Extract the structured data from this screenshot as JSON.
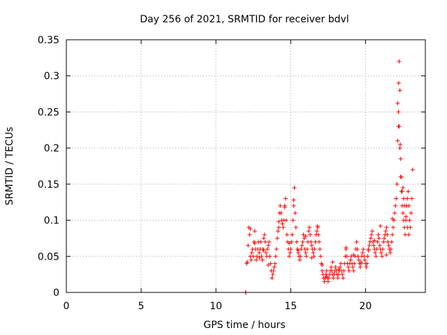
{
  "chart_data": {
    "type": "scatter",
    "title": "Day 256 of 2021, SRMTID for receiver bdvl",
    "xlabel": "GPS time / hours",
    "ylabel": "SRMTID / TECUs",
    "xlim": [
      0,
      24
    ],
    "ylim": [
      0,
      0.35
    ],
    "x_ticks": [
      0,
      5,
      10,
      15,
      20
    ],
    "x_tick_labels": [
      "0",
      "5",
      "10",
      "15",
      "20"
    ],
    "y_ticks": [
      0,
      0.05,
      0.1,
      0.15,
      0.2,
      0.25,
      0.3,
      0.35
    ],
    "y_tick_labels": [
      "0",
      "0.05",
      "0.1",
      "0.15",
      "0.2",
      "0.25",
      "0.3",
      "0.35"
    ],
    "grid": true,
    "legend": "none",
    "marker": "+",
    "color": "#ff0000",
    "series": [
      {
        "x": [
          11.98,
          12.0,
          12.05,
          12.1,
          12.15,
          12.2,
          12.25,
          12.3,
          12.35,
          12.4,
          12.45,
          12.5,
          12.55,
          12.6,
          12.65,
          12.7,
          12.75,
          12.8,
          12.85,
          12.9,
          12.95,
          13.0,
          13.05,
          13.1,
          13.15,
          13.2,
          13.25,
          13.3,
          13.35,
          13.4,
          13.45,
          13.5,
          13.55,
          13.6,
          13.65,
          13.7,
          13.75,
          13.8,
          13.85,
          13.9,
          13.95,
          14.0,
          14.05,
          14.1,
          14.15,
          14.2,
          14.25,
          14.3,
          14.35,
          14.4,
          14.45,
          14.5,
          14.55,
          14.6,
          14.65,
          14.7,
          14.75,
          14.8,
          14.85,
          14.9,
          14.95,
          15.0,
          15.05,
          15.1,
          15.15,
          15.2,
          15.25,
          15.3,
          15.35,
          15.4,
          15.45,
          15.5,
          15.55,
          15.6,
          15.65,
          15.7,
          15.75,
          15.8,
          15.85,
          15.9,
          15.95,
          16.0,
          16.05,
          16.1,
          16.15,
          16.2,
          16.25,
          16.3,
          16.35,
          16.4,
          16.45,
          16.5,
          16.55,
          16.6,
          16.65,
          16.7,
          16.75,
          16.8,
          16.85,
          16.9,
          16.95,
          17.0,
          17.05,
          17.1,
          17.15,
          17.2,
          17.25,
          17.3,
          17.35,
          17.4,
          17.45,
          17.5,
          17.55,
          17.6,
          17.65,
          17.7,
          17.75,
          17.8,
          17.85,
          17.9,
          17.95,
          18.0,
          18.05,
          18.1,
          18.15,
          18.2,
          18.25,
          18.3,
          18.35,
          18.4,
          18.45,
          18.5,
          18.55,
          18.6,
          18.65,
          18.7,
          18.75,
          18.8,
          18.85,
          18.9,
          18.95,
          19.0,
          19.05,
          19.1,
          19.15,
          19.2,
          19.25,
          19.3,
          19.35,
          19.4,
          19.45,
          19.5,
          19.55,
          19.6,
          19.65,
          19.7,
          19.75,
          19.8,
          19.85,
          19.9,
          19.95,
          20.0,
          20.05,
          20.1,
          20.15,
          20.2,
          20.25,
          20.3,
          20.35,
          20.4,
          20.45,
          20.5,
          20.55,
          20.6,
          20.65,
          20.7,
          20.75,
          20.8,
          20.85,
          20.9,
          20.95,
          21.0,
          21.05,
          21.1,
          21.15,
          21.2,
          21.25,
          21.3,
          21.35,
          21.4,
          21.45,
          21.5,
          21.55,
          21.6,
          21.65,
          21.7,
          21.75,
          21.8,
          21.85,
          21.9,
          21.95,
          22.0,
          22.05,
          22.1,
          22.15,
          22.2,
          22.25,
          22.3,
          22.35,
          22.4,
          22.45,
          22.5,
          22.55,
          22.6,
          22.65,
          22.7,
          22.75,
          22.8,
          22.85,
          22.9,
          22.95,
          23.0,
          23.05,
          23.1,
          23.15,
          12.3,
          12.6,
          12.9,
          13.2,
          13.5,
          14.2,
          14.6,
          14.9,
          15.2,
          15.5,
          16.0,
          16.4,
          16.8,
          17.1,
          17.4,
          17.8,
          18.2,
          18.7,
          19.2,
          19.7,
          20.2,
          20.6,
          21.0,
          21.4,
          21.8,
          22.15,
          22.2,
          22.22,
          22.25,
          22.3,
          22.32,
          22.35,
          22.4,
          22.45,
          22.5,
          22.55,
          22.6,
          22.7,
          22.8,
          22.9
        ],
        "y": [
          0.0,
          0.0,
          0.04,
          0.042,
          0.065,
          0.09,
          0.08,
          0.05,
          0.045,
          0.055,
          0.06,
          0.05,
          0.07,
          0.085,
          0.06,
          0.045,
          0.05,
          0.06,
          0.07,
          0.055,
          0.06,
          0.07,
          0.05,
          0.045,
          0.06,
          0.075,
          0.08,
          0.07,
          0.055,
          0.05,
          0.06,
          0.065,
          0.07,
          0.05,
          0.04,
          0.03,
          0.02,
          0.025,
          0.03,
          0.035,
          0.04,
          0.05,
          0.06,
          0.075,
          0.085,
          0.09,
          0.11,
          0.12,
          0.11,
          0.1,
          0.095,
          0.09,
          0.1,
          0.12,
          0.13,
          0.1,
          0.08,
          0.07,
          0.06,
          0.05,
          0.055,
          0.06,
          0.07,
          0.08,
          0.1,
          0.12,
          0.145,
          0.11,
          0.09,
          0.07,
          0.06,
          0.055,
          0.05,
          0.045,
          0.05,
          0.06,
          0.065,
          0.07,
          0.08,
          0.075,
          0.06,
          0.055,
          0.05,
          0.06,
          0.07,
          0.085,
          0.09,
          0.08,
          0.07,
          0.065,
          0.06,
          0.055,
          0.05,
          0.06,
          0.07,
          0.08,
          0.085,
          0.09,
          0.08,
          0.07,
          0.06,
          0.05,
          0.04,
          0.03,
          0.025,
          0.02,
          0.015,
          0.02,
          0.025,
          0.03,
          0.02,
          0.015,
          0.02,
          0.025,
          0.03,
          0.035,
          0.03,
          0.025,
          0.02,
          0.025,
          0.03,
          0.035,
          0.03,
          0.025,
          0.02,
          0.025,
          0.03,
          0.035,
          0.04,
          0.03,
          0.025,
          0.02,
          0.03,
          0.04,
          0.05,
          0.06,
          0.05,
          0.04,
          0.035,
          0.03,
          0.04,
          0.045,
          0.05,
          0.04,
          0.035,
          0.03,
          0.04,
          0.05,
          0.06,
          0.07,
          0.06,
          0.05,
          0.045,
          0.04,
          0.035,
          0.04,
          0.05,
          0.055,
          0.06,
          0.05,
          0.045,
          0.04,
          0.035,
          0.04,
          0.05,
          0.06,
          0.065,
          0.07,
          0.075,
          0.08,
          0.085,
          0.07,
          0.065,
          0.06,
          0.055,
          0.05,
          0.06,
          0.07,
          0.08,
          0.075,
          0.065,
          0.06,
          0.055,
          0.05,
          0.06,
          0.07,
          0.075,
          0.08,
          0.085,
          0.09,
          0.08,
          0.07,
          0.065,
          0.06,
          0.055,
          0.06,
          0.07,
          0.08,
          0.09,
          0.1,
          0.11,
          0.12,
          0.13,
          0.15,
          0.21,
          0.25,
          0.23,
          0.2,
          0.16,
          0.14,
          0.12,
          0.11,
          0.1,
          0.09,
          0.08,
          0.1,
          0.12,
          0.13,
          0.14,
          0.12,
          0.1,
          0.09,
          0.11,
          0.13,
          0.17,
          0.088,
          0.068,
          0.048,
          0.058,
          0.038,
          0.098,
          0.118,
          0.068,
          0.128,
          0.058,
          0.078,
          0.048,
          0.092,
          0.038,
          0.022,
          0.042,
          0.032,
          0.062,
          0.052,
          0.042,
          0.058,
          0.072,
          0.092,
          0.052,
          0.102,
          0.262,
          0.23,
          0.29,
          0.32,
          0.28,
          0.205,
          0.185,
          0.16,
          0.14,
          0.145,
          0.13,
          0.12,
          0.105,
          0.09,
          0.08
        ]
      }
    ]
  }
}
